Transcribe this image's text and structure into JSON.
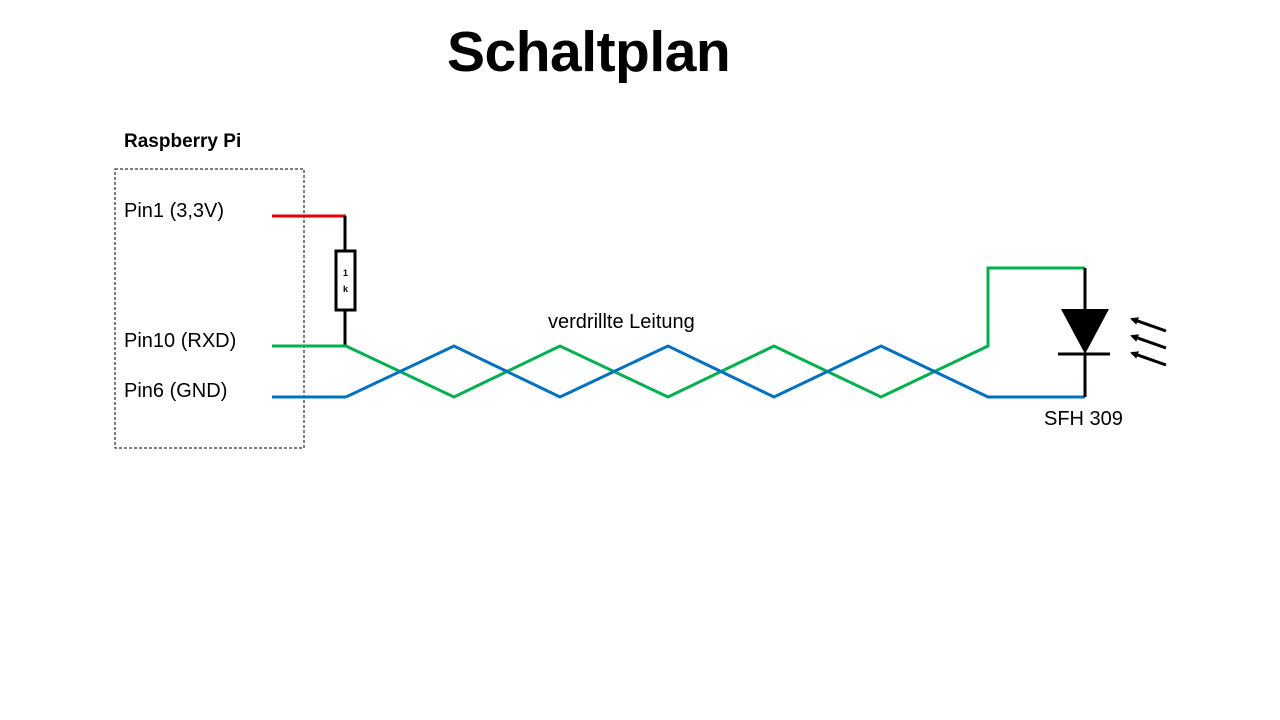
{
  "title": "Schaltplan",
  "board": {
    "label": "Raspberry Pi",
    "pins": [
      {
        "label": "Pin1 (3,3V)"
      },
      {
        "label": "Pin10 (RXD)"
      },
      {
        "label": "Pin6 (GND)"
      }
    ]
  },
  "resistor": {
    "label_line1": "1",
    "label_line2": "k"
  },
  "cable": {
    "label": "verdrillte Leitung"
  },
  "sensor": {
    "label": "SFH 309",
    "icon": "phototransistor-icon"
  },
  "colors": {
    "vcc": "#e00000",
    "signal": "#00b050",
    "ground": "#0070c0",
    "component": "#000000"
  }
}
